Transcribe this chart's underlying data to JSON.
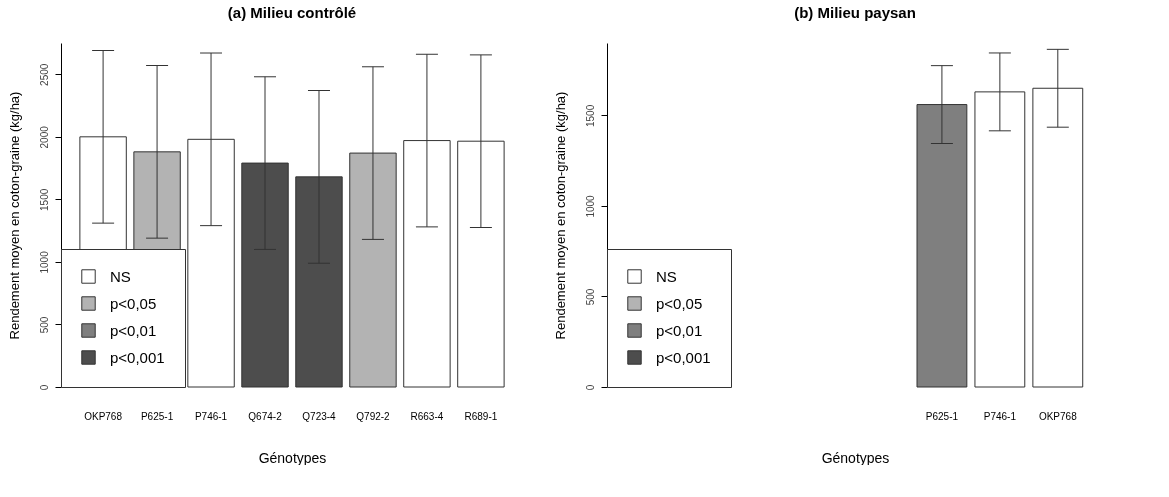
{
  "chart_data": [
    {
      "type": "bar",
      "title": "(a) Milieu contrôlé",
      "xlabel": "Génotypes",
      "ylabel": "Rendement moyen en coton-graine (kg/ha)",
      "categories": [
        "OKP768",
        "P625-1",
        "P746-1",
        "Q674-2",
        "Q723-4",
        "Q792-2",
        "R663-4",
        "R689-1"
      ],
      "series": [
        {
          "name": "NS",
          "color": "#ffffff",
          "values": [
            2000,
            null,
            1980,
            null,
            null,
            null,
            1970,
            1965
          ],
          "errors": [
            690,
            null,
            690,
            null,
            null,
            null,
            690,
            690
          ]
        },
        {
          "name": "p<0,05",
          "color": "#b3b3b3",
          "values": [
            null,
            1880,
            null,
            null,
            null,
            1870,
            null,
            null
          ],
          "errors": [
            null,
            690,
            null,
            null,
            null,
            690,
            null,
            null
          ]
        },
        {
          "name": "p<0,01",
          "color": "#7f7f7f",
          "values": [
            null,
            null,
            null,
            null,
            null,
            null,
            null,
            null
          ]
        },
        {
          "name": "p<0,001",
          "color": "#4d4d4d",
          "values": [
            null,
            null,
            null,
            1790,
            1680,
            null,
            null,
            null
          ],
          "errors": [
            null,
            null,
            null,
            690,
            690,
            null,
            null,
            null
          ]
        }
      ],
      "ylim": [
        0,
        2750
      ],
      "yticks": [
        0,
        500,
        1000,
        1500,
        2000,
        2500
      ],
      "legend": "bottom left",
      "grid": false
    },
    {
      "type": "bar",
      "title": "(b) Milieu paysan",
      "xlabel": "Génotypes",
      "ylabel": "Rendement moyen en coton-graine (kg/ha)",
      "categories": [
        null,
        null,
        null,
        null,
        null,
        "P625-1",
        "P746-1",
        "OKP768"
      ],
      "series": [
        {
          "name": "NS",
          "color": "#ffffff",
          "values": [
            null,
            null,
            null,
            null,
            null,
            null,
            1630,
            1650
          ],
          "errors": [
            null,
            null,
            null,
            null,
            null,
            null,
            215,
            215
          ]
        },
        {
          "name": "p<0,05",
          "color": "#b3b3b3",
          "values": [
            null,
            null,
            null,
            null,
            null,
            null,
            null,
            null
          ]
        },
        {
          "name": "p<0,01",
          "color": "#7f7f7f",
          "values": [
            null,
            null,
            null,
            null,
            null,
            1560,
            null,
            null
          ],
          "errors": [
            null,
            null,
            null,
            null,
            null,
            215,
            null,
            null
          ]
        },
        {
          "name": "p<0,001",
          "color": "#4d4d4d",
          "values": [
            null,
            null,
            null,
            null,
            null,
            null,
            null,
            null
          ]
        }
      ],
      "ylim": [
        0,
        1900
      ],
      "yticks": [
        0,
        500,
        1000,
        1500
      ],
      "legend": "bottom left",
      "grid": false
    }
  ]
}
